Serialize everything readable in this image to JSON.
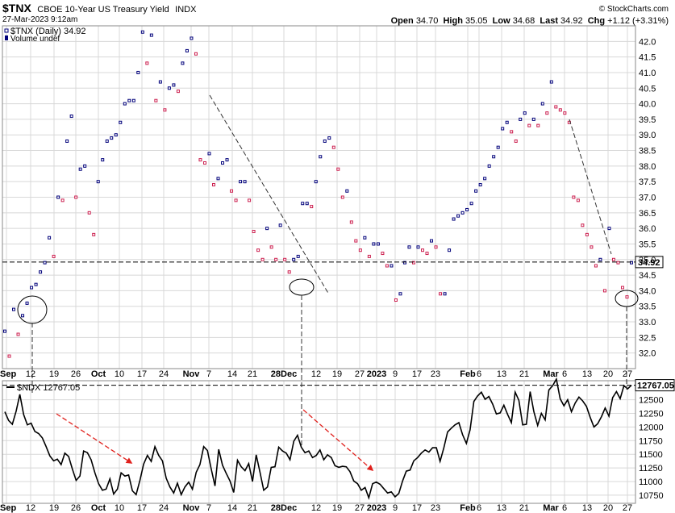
{
  "header": {
    "symbol": "$TNX",
    "description": "CBOE 10-Year US Treasury Yield",
    "exchange": "INDX",
    "timestamp": "27-Mar-2023 9:12am",
    "brand": "© StockCharts.com",
    "open_label": "Open",
    "open_value": "34.70",
    "high_label": "High",
    "high_value": "35.05",
    "low_label": "Low",
    "low_value": "34.68",
    "last_label": "Last",
    "last_value": "34.92",
    "chg_label": "Chg",
    "chg_value": "+1.12 (+3.31%)"
  },
  "colors": {
    "up": "#00007a",
    "down": "#cc1f4f",
    "line": "#000000",
    "grid": "#d8d8d8",
    "arrow": "#e0201c"
  },
  "chart_data": [
    {
      "type": "scatter",
      "title": "$TNX (Daily) 34.92",
      "legend": [
        "$TNX (Daily) 34.92",
        "Volume undef"
      ],
      "ylim": [
        31.5,
        42.5
      ],
      "y_ticks": [
        "32.0",
        "32.5",
        "33.0",
        "33.5",
        "34.0",
        "34.5",
        "35.0",
        "35.5",
        "36.0",
        "36.5",
        "37.0",
        "37.5",
        "38.0",
        "38.5",
        "39.0",
        "39.5",
        "40.0",
        "40.5",
        "41.0",
        "41.5",
        "42.0"
      ],
      "last_label": "34.92",
      "x_labels": [
        "Sep",
        "12",
        "19",
        "26",
        "Oct",
        "10",
        "17",
        "24",
        "Nov",
        "7",
        "14",
        "21",
        "28Dec",
        "12",
        "19",
        "27",
        "2023",
        "9",
        "17",
        "23",
        "Feb",
        "6",
        "13",
        "21",
        "Mar",
        "6",
        "13",
        "20",
        "27"
      ],
      "values": [
        32.7,
        31.9,
        33.4,
        32.6,
        33.2,
        33.6,
        34.1,
        34.2,
        34.6,
        34.9,
        35.7,
        35.1,
        37.0,
        36.9,
        38.8,
        39.6,
        37.0,
        37.9,
        38.0,
        36.5,
        35.8,
        37.5,
        38.2,
        38.8,
        38.9,
        39.0,
        39.4,
        40.0,
        40.1,
        40.1,
        41.0,
        42.3,
        41.3,
        42.2,
        40.1,
        40.7,
        39.8,
        40.5,
        40.6,
        40.4,
        41.3,
        41.7,
        42.1,
        41.6,
        38.2,
        38.1,
        38.4,
        37.4,
        37.6,
        38.1,
        38.2,
        37.2,
        36.9,
        37.5,
        37.5,
        36.9,
        35.9,
        35.3,
        35.0,
        36.0,
        35.4,
        35.0,
        36.1,
        35.0,
        34.6,
        35.0,
        35.1,
        36.8,
        36.8,
        36.7,
        37.5,
        38.3,
        38.8,
        38.9,
        38.6,
        37.9,
        37.0,
        37.2,
        36.2,
        35.6,
        35.3,
        35.7,
        35.1,
        35.5,
        35.5,
        35.2,
        34.8,
        34.8,
        33.7,
        33.9,
        34.9,
        35.4,
        34.9,
        35.4,
        35.3,
        35.2,
        35.6,
        35.4,
        33.9,
        33.9,
        35.3,
        36.3,
        36.4,
        36.5,
        36.6,
        36.8,
        37.2,
        37.4,
        37.6,
        38.0,
        38.3,
        38.6,
        39.2,
        39.4,
        39.1,
        38.8,
        39.5,
        39.7,
        39.3,
        39.5,
        39.3,
        40.0,
        39.7,
        40.7,
        39.9,
        39.8,
        39.7,
        39.4,
        37.0,
        36.9,
        36.1,
        35.8,
        35.4,
        34.8,
        35.0,
        34.0,
        36.0,
        35.0,
        34.9,
        34.1,
        33.8,
        34.9
      ]
    },
    {
      "type": "line",
      "title": "$NDX 12767.05",
      "legend": [
        "$NDX 12767.05"
      ],
      "ylim": [
        10600,
        12850
      ],
      "y_ticks": [
        "10750",
        "11000",
        "11250",
        "11500",
        "11750",
        "12000",
        "12250",
        "12500"
      ],
      "last_label": "12767.05",
      "x_labels": [
        "Sep",
        "12",
        "19",
        "26",
        "Oct",
        "10",
        "17",
        "24",
        "Nov",
        "7",
        "14",
        "21",
        "28Dec",
        "12",
        "19",
        "27",
        "2023",
        "9",
        "17",
        "23",
        "Feb",
        "6",
        "13",
        "21",
        "Mar",
        "6",
        "13",
        "20",
        "27"
      ],
      "values": [
        12280,
        12120,
        12050,
        12290,
        12600,
        12230,
        12040,
        12070,
        11920,
        11880,
        11800,
        11640,
        11470,
        11380,
        11410,
        11310,
        11520,
        11460,
        11230,
        11020,
        11100,
        11560,
        11530,
        11400,
        11160,
        10960,
        10840,
        10860,
        11050,
        10770,
        10860,
        11160,
        11100,
        11120,
        10830,
        10760,
        11020,
        11320,
        11480,
        11370,
        11640,
        11480,
        11380,
        11060,
        10900,
        10790,
        10970,
        10760,
        10900,
        10990,
        10860,
        11170,
        11310,
        11640,
        11570,
        11230,
        10920,
        11590,
        11300,
        11150,
        11010,
        10800,
        11390,
        11270,
        11200,
        11330,
        11000,
        11490,
        11170,
        10840,
        10900,
        11260,
        11270,
        11630,
        11560,
        11520,
        11400,
        11740,
        11850,
        11630,
        11530,
        11560,
        11440,
        11480,
        11580,
        11400,
        11490,
        11440,
        11290,
        11260,
        11280,
        11270,
        11180,
        11010,
        10960,
        10840,
        10890,
        10700,
        10960,
        10990,
        10950,
        10870,
        10790,
        10810,
        10720,
        10780,
        11010,
        11190,
        11210,
        11380,
        11440,
        11520,
        11580,
        11540,
        11620,
        11620,
        11370,
        11620,
        11910,
        11980,
        12040,
        12080,
        11860,
        11700,
        11950,
        12470,
        12570,
        12640,
        12510,
        12560,
        12420,
        12240,
        12260,
        12400,
        12230,
        12080,
        12640,
        12490,
        12040,
        12050,
        12650,
        12280,
        12030,
        12250,
        12130,
        12680,
        12760,
        12880,
        12520,
        12390,
        12500,
        12280,
        12440,
        12550,
        12480,
        12380,
        12180,
        12000,
        12060,
        12190,
        12350,
        12200,
        12540,
        12650,
        12520,
        12760,
        12700,
        12767
      ]
    }
  ]
}
